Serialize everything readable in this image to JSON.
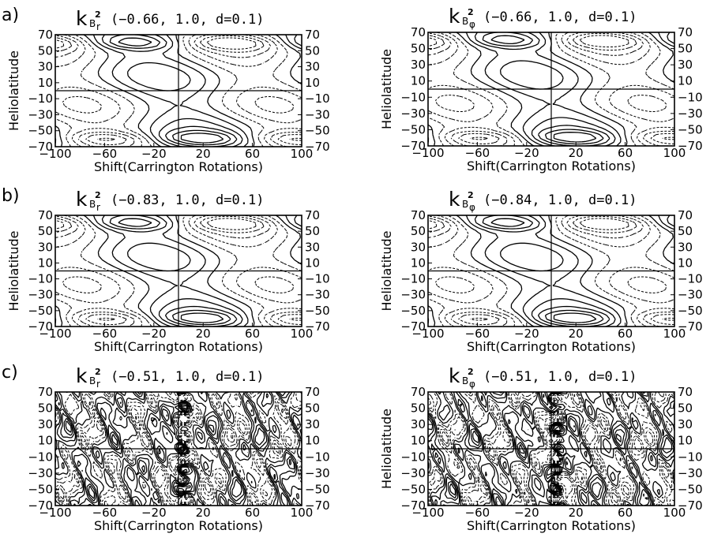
{
  "chart_data": [
    {
      "type": "contour",
      "panel": "a)",
      "symbol": "k",
      "sub": "B",
      "subsub": "r",
      "sup": "2",
      "params": "(−0.66,  1.0,  d=0.1)",
      "xlabel": "Shift(Carrington Rotations)",
      "ylabel": "Heliolatitude",
      "xlim": [
        -100,
        100
      ],
      "ylim": [
        -70,
        70
      ],
      "xticks": [
        "−100",
        "−60",
        "−20",
        "20",
        "60",
        "100"
      ],
      "yticks_left": [
        "70",
        "50",
        "30",
        "10",
        "−10",
        "−30",
        "−50",
        "−70"
      ],
      "yticks_right": [
        "70",
        "50",
        "30",
        "10",
        "−10",
        "−30",
        "−50",
        "−70"
      ],
      "pattern": "band"
    },
    {
      "type": "contour",
      "panel": "",
      "symbol": "k",
      "sub": "B",
      "subsub": "φ",
      "sup": "2",
      "params": "(−0.66,  1.0,  d=0.1)",
      "xlabel": "Shift(Carrington Rotations)",
      "ylabel": "Heliolatitude",
      "xlim": [
        -100,
        100
      ],
      "ylim": [
        -70,
        70
      ],
      "xticks": [
        "−100",
        "−60",
        "−20",
        "20",
        "60",
        "100"
      ],
      "yticks_left": [
        "70",
        "50",
        "30",
        "10",
        "−10",
        "−30",
        "−50",
        "−70"
      ],
      "yticks_right": [
        "70",
        "50",
        "30",
        "10",
        "−10",
        "−30",
        "−50",
        "−70"
      ],
      "pattern": "band"
    },
    {
      "type": "contour",
      "panel": "b)",
      "symbol": "k",
      "sub": "B",
      "subsub": "r",
      "sup": "2",
      "params": "(−0.83,  1.0,  d=0.1)",
      "xlabel": "Shift(Carrington Rotations)",
      "ylabel": "Heliolatitude",
      "xlim": [
        -100,
        100
      ],
      "ylim": [
        -70,
        70
      ],
      "xticks": [
        "−100",
        "−60",
        "−20",
        "20",
        "60",
        "100"
      ],
      "yticks_left": [
        "70",
        "50",
        "30",
        "10",
        "−10",
        "−30",
        "−50",
        "−70"
      ],
      "yticks_right": [
        "70",
        "50",
        "30",
        "10",
        "−10",
        "−30",
        "−50",
        "−70"
      ],
      "pattern": "band"
    },
    {
      "type": "contour",
      "panel": "",
      "symbol": "k",
      "sub": "B",
      "subsub": "φ",
      "sup": "2",
      "params": "(−0.84,  1.0,  d=0.1)",
      "xlabel": "Shift(Carrington Rotations)",
      "ylabel": "Heliolatitude",
      "xlim": [
        -100,
        100
      ],
      "ylim": [
        -70,
        70
      ],
      "xticks": [
        "−100",
        "−60",
        "−20",
        "20",
        "60",
        "100"
      ],
      "yticks_left": [
        "70",
        "50",
        "30",
        "10",
        "−10",
        "−30",
        "−50",
        "−70"
      ],
      "yticks_right": [
        "70",
        "50",
        "30",
        "10",
        "−10",
        "−30",
        "−50",
        "−70"
      ],
      "pattern": "band"
    },
    {
      "type": "contour",
      "panel": "c)",
      "symbol": "k",
      "sub": "B",
      "subsub": "r",
      "sup": "2",
      "params": "(−0.51,  1.0,  d=0.1)",
      "xlabel": "Shift(Carrington Rotations)",
      "ylabel": "",
      "xlim": [
        -100,
        100
      ],
      "ylim": [
        -70,
        70
      ],
      "xticks": [
        "−100",
        "−60",
        "−20",
        "20",
        "60",
        "100"
      ],
      "yticks_left": [
        "70",
        "50",
        "30",
        "10",
        "−10",
        "−30",
        "−50",
        "−70"
      ],
      "yticks_right": [
        "70",
        "50",
        "30",
        "10",
        "−10",
        "−30",
        "−50",
        "−70"
      ],
      "pattern": "noisy"
    },
    {
      "type": "contour",
      "panel": "",
      "symbol": "k",
      "sub": "B",
      "subsub": "φ",
      "sup": "2",
      "params": "(−0.51,  1.0,  d=0.1)",
      "xlabel": "Shift(Carrington Rotations)",
      "ylabel": "Heliolatitude",
      "xlim": [
        -100,
        100
      ],
      "ylim": [
        -70,
        70
      ],
      "xticks": [
        "−100",
        "−60",
        "−20",
        "20",
        "60",
        "100"
      ],
      "yticks_left": [
        "70",
        "50",
        "30",
        "10",
        "−10",
        "−30",
        "−50",
        "−70"
      ],
      "yticks_right": [
        "70",
        "50",
        "30",
        "10",
        "−10",
        "−30",
        "−50",
        "−70"
      ],
      "pattern": "noisy"
    }
  ]
}
